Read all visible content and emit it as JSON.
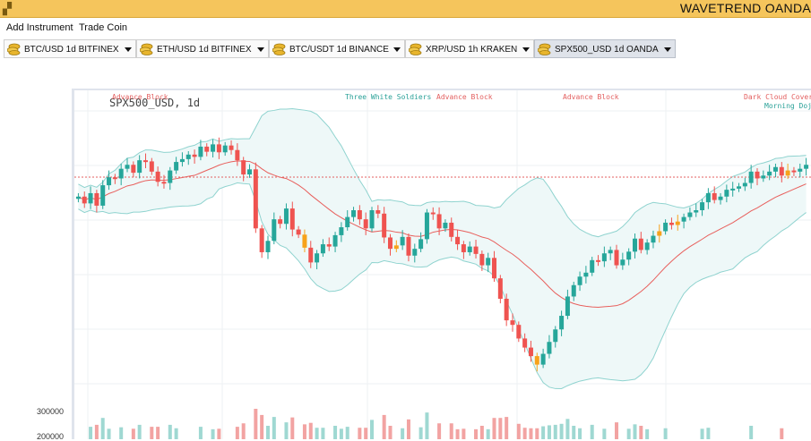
{
  "window": {
    "title": "WAVETREND OANDA"
  },
  "menu": {
    "add_instrument": "Add Instrument",
    "trade_coin": "Trade Coin"
  },
  "tabs": [
    {
      "label": "BTC/USD 1d BITFINEX",
      "active": false
    },
    {
      "label": "ETH/USD 1d BITFINEX",
      "active": false
    },
    {
      "label": "BTC/USDT 1d BINANCE",
      "active": false
    },
    {
      "label": "XRP/USD 1h KRAKEN",
      "active": false
    },
    {
      "label": "SPX500_USD 1d OANDA",
      "active": true
    }
  ],
  "chart": {
    "symbol_label": "SPX500_USD, 1d",
    "patterns": [
      {
        "text": "Advance Block",
        "color": "#e35f5f"
      },
      {
        "text": "Three White Soldiers",
        "color": "#2aa198"
      },
      {
        "text": "Advance Block",
        "color": "#e35f5f"
      },
      {
        "text": "Advance Block",
        "color": "#e35f5f"
      },
      {
        "text": "Dark Cloud Cover",
        "color": "#e35f5f"
      },
      {
        "text": "Morning Doji",
        "color": "#2aa198"
      }
    ],
    "volume_labels": [
      "300000",
      "200000"
    ],
    "colors": {
      "up": "#26a69a",
      "down": "#ef5350",
      "highlight": "#f7a21b",
      "ma": "#e8605d",
      "band": "#8fd3cf",
      "band_fill": "#eef8f8"
    }
  },
  "chart_data": {
    "type": "candlestick",
    "title": "SPX500_USD, 1d",
    "series": [
      {
        "name": "candles",
        "closes": [
          2696,
          2684,
          2702,
          2680,
          2716,
          2730,
          2728,
          2745,
          2752,
          2738,
          2760,
          2758,
          2740,
          2722,
          2720,
          2742,
          2757,
          2762,
          2770,
          2766,
          2784,
          2775,
          2788,
          2774,
          2786,
          2778,
          2760,
          2735,
          2744,
          2640,
          2598,
          2618,
          2656,
          2648,
          2675,
          2638,
          2629,
          2606,
          2580,
          2596,
          2612,
          2608,
          2628,
          2642,
          2660,
          2672,
          2656,
          2640,
          2672,
          2666,
          2624,
          2604,
          2610,
          2625,
          2592,
          2604,
          2621,
          2668,
          2665,
          2640,
          2650,
          2625,
          2612,
          2598,
          2608,
          2595,
          2575,
          2588,
          2552,
          2516,
          2478,
          2470,
          2446,
          2430,
          2415,
          2400,
          2419,
          2440,
          2462,
          2486,
          2520,
          2540,
          2555,
          2562,
          2584,
          2582,
          2596,
          2602,
          2575,
          2585,
          2599,
          2622,
          2602,
          2615,
          2627,
          2635,
          2650,
          2646,
          2652,
          2660,
          2668,
          2672,
          2686,
          2702,
          2690,
          2696,
          2708,
          2710,
          2714,
          2720,
          2740,
          2728,
          2733,
          2740,
          2748,
          2733,
          2742,
          2740,
          2745,
          2752
        ]
      }
    ],
    "annotations": [
      "Advance Block",
      "Three White Soldiers",
      "Advance Block",
      "Advance Block",
      "Dark Cloud Cover",
      "Morning Doji"
    ],
    "volume_ticks": [
      300000,
      200000
    ]
  }
}
